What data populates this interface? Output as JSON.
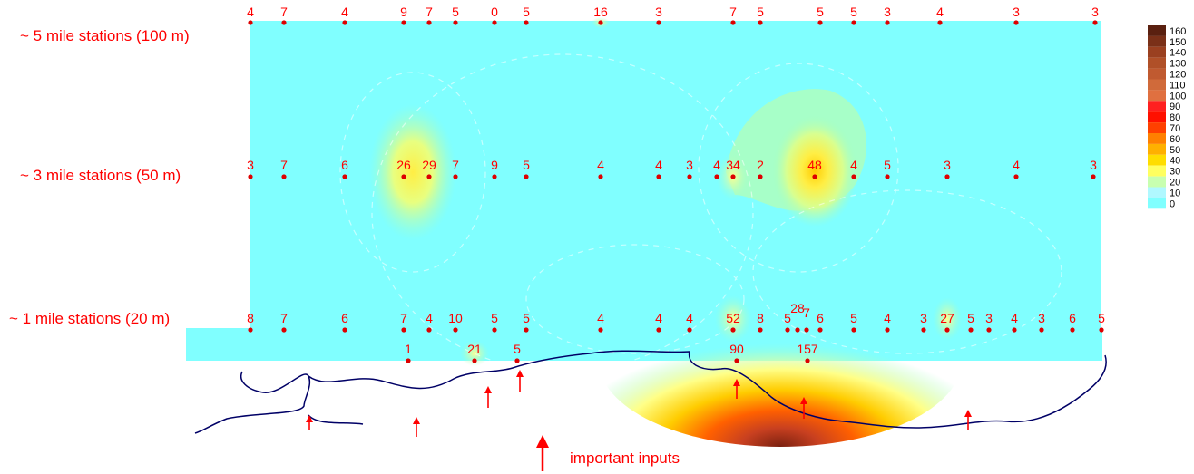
{
  "row_labels": {
    "five_mile": "~ 5 mile stations (100 m)",
    "three_mile": "~ 3 mile stations (50 m)",
    "one_mile": "~ 1 mile stations (20 m)"
  },
  "stations": {
    "five_mile": [
      "4",
      "7",
      "4",
      "9",
      "7",
      "5",
      "0",
      "5",
      "16",
      "3",
      "7",
      "5",
      "5",
      "5",
      "3",
      "4",
      "3",
      "3"
    ],
    "three_mile": [
      "3",
      "7",
      "6",
      "26",
      "29",
      "7",
      "9",
      "5",
      "4",
      "4",
      "3",
      "4",
      "34",
      "2",
      "48",
      "4",
      "5",
      "3",
      "4",
      "3"
    ],
    "one_mile": [
      "8",
      "7",
      "6",
      "7",
      "4",
      "10",
      "5",
      "5",
      "4",
      "4",
      "4",
      "52",
      "8",
      "5",
      "28",
      "7",
      "6",
      "5",
      "4",
      "3",
      "27",
      "5",
      "3",
      "4",
      "3",
      "6",
      "5"
    ],
    "inshore": [
      "1",
      "21",
      "5",
      "90",
      "157"
    ]
  },
  "legend": {
    "values": [
      "160",
      "150",
      "140",
      "130",
      "120",
      "110",
      "100",
      "90",
      "80",
      "70",
      "60",
      "50",
      "40",
      "30",
      "20",
      "10",
      "0"
    ]
  },
  "inputs_label": "important inputs",
  "colors": {
    "background": "#80ffff",
    "station_marker": "#dd0000",
    "text": "#ff0000",
    "coastline": "#000066",
    "arrow": "#ff0000"
  }
}
